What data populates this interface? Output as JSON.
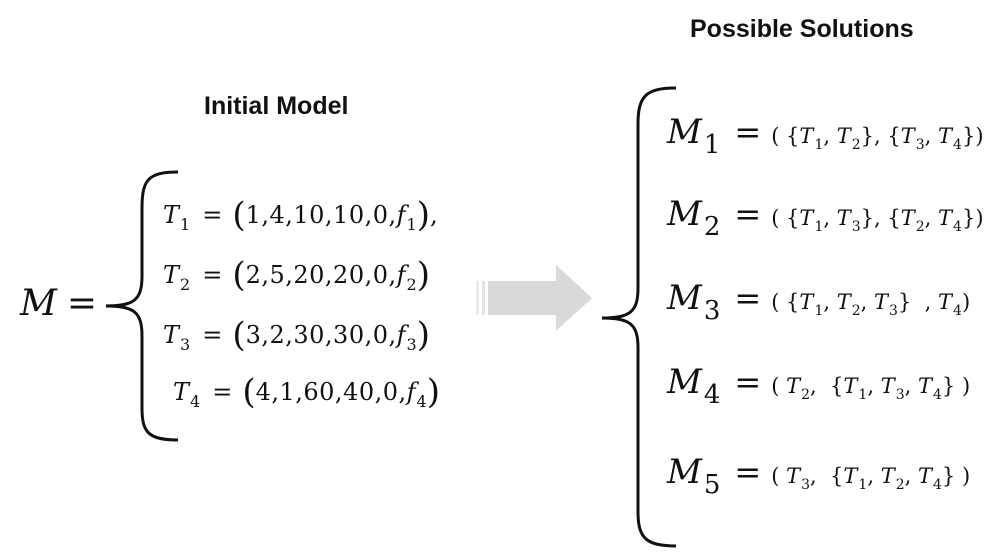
{
  "titles": {
    "initial_model": "Initial Model",
    "possible_solutions": "Possible Solutions"
  },
  "model": {
    "symbol": "M",
    "equals": "=",
    "tasks": [
      {
        "name": "T",
        "sub": "1",
        "values": "1,4,10,10,0,",
        "f": "f",
        "f_sub": "1",
        "trail": ","
      },
      {
        "name": "T",
        "sub": "2",
        "values": "2,5,20,20,0,",
        "f": "f",
        "f_sub": "2",
        "trail": ""
      },
      {
        "name": "T",
        "sub": "3",
        "values": "3,2,30,30,0,",
        "f": "f",
        "f_sub": "3",
        "trail": ""
      },
      {
        "name": "T",
        "sub": "4",
        "values": "4,1,60,40,0,",
        "f": "f",
        "f_sub": "4",
        "trail": ""
      }
    ]
  },
  "solutions": [
    {
      "label": "M",
      "sub": "1"
    },
    {
      "label": "M",
      "sub": "2"
    },
    {
      "label": "M",
      "sub": "3"
    },
    {
      "label": "M",
      "sub": "4"
    },
    {
      "label": "M",
      "sub": "5"
    }
  ],
  "colors": {
    "text": "#111111",
    "arrow": "#d9d9d9",
    "brace": "#111111"
  }
}
